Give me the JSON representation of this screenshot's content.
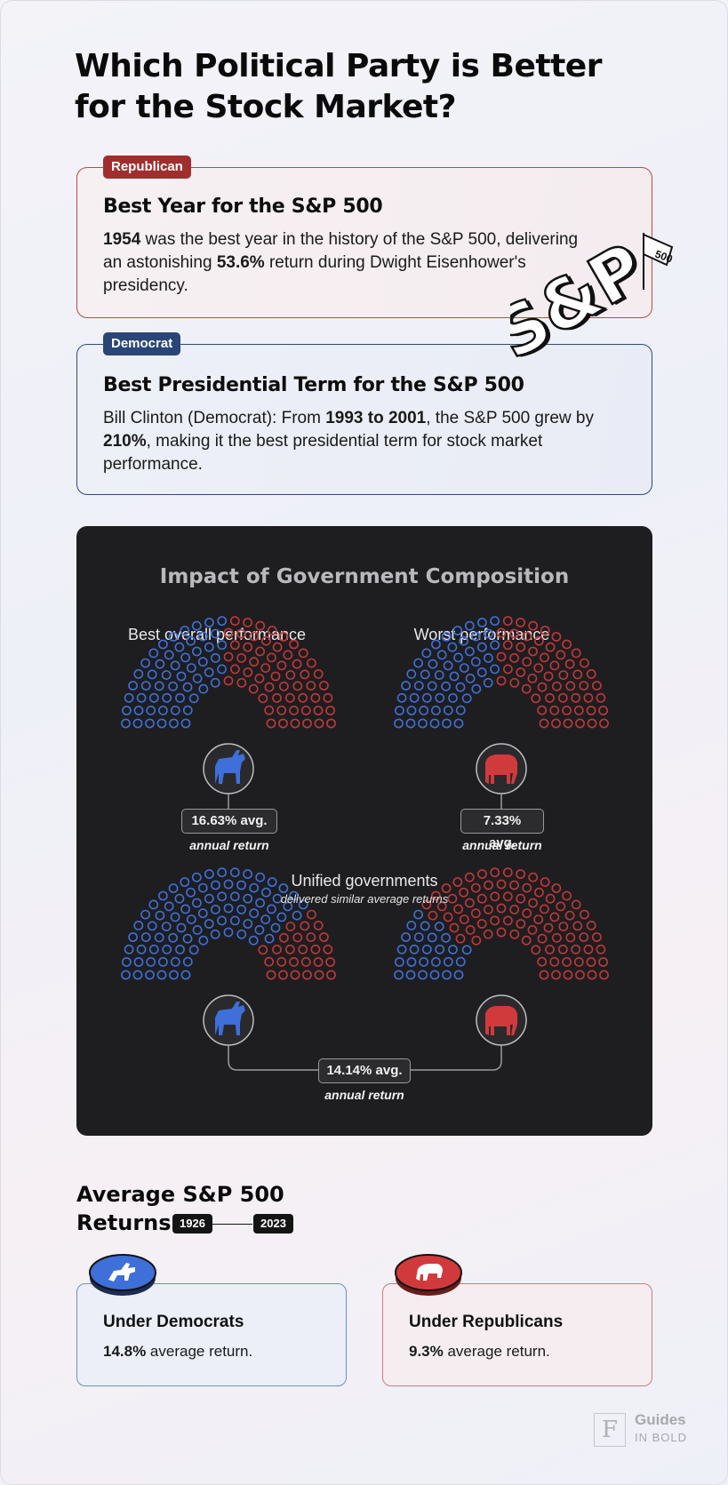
{
  "title": "Which Political Party is Better for the Stock Market?",
  "card1": {
    "tag": "Republican",
    "heading": "Best Year for the S&P 500",
    "year": "1954",
    "text_a": " was the best year in the history of the S&P 500, delivering an astonishing ",
    "return": "53.6%",
    "text_b": " return during Dwight Eisenhower's presidency."
  },
  "card2": {
    "tag": "Democrat",
    "heading": "Best Presidential Term for the S&P 500",
    "text_a": "Bill Clinton (Democrat): From ",
    "range": "1993 to 2001",
    "text_b": ", the S&P 500 grew by ",
    "growth": "210%",
    "text_c": ", making it the best presidential term for stock market performance."
  },
  "logo": {
    "text": "S&P",
    "flag": "500"
  },
  "impact": {
    "title": "Impact of Government Composition",
    "best": {
      "label": "Best overall performance",
      "avg": "16.63% avg.",
      "sub": "annual return"
    },
    "worst": {
      "label": "Worst performance",
      "avg": "7.33% avg.",
      "sub": "annual return"
    },
    "unified": {
      "label": "Unified governments",
      "sub": "delivered similar average returns",
      "avg": "14.14% avg.",
      "annual": "annual return"
    }
  },
  "averages": {
    "title_line1": "Average S&P 500",
    "title_line2": "Returns",
    "start_year": "1926",
    "end_year": "2023",
    "dem": {
      "heading": "Under Democrats",
      "value": "14.8%",
      "suffix": " average return."
    },
    "rep": {
      "heading": "Under Republicans",
      "value": "9.3%",
      "suffix": " average return."
    }
  },
  "brand": {
    "mark": "F",
    "line1": "Guides",
    "line2": "IN BOLD"
  },
  "colors": {
    "blue": "#3f6fd8",
    "red": "#c0383a",
    "dem_tag": "#2a4577",
    "rep_tag": "#a12e2e"
  },
  "icons": {
    "donkey": "donkey-icon",
    "elephant": "elephant-icon"
  }
}
